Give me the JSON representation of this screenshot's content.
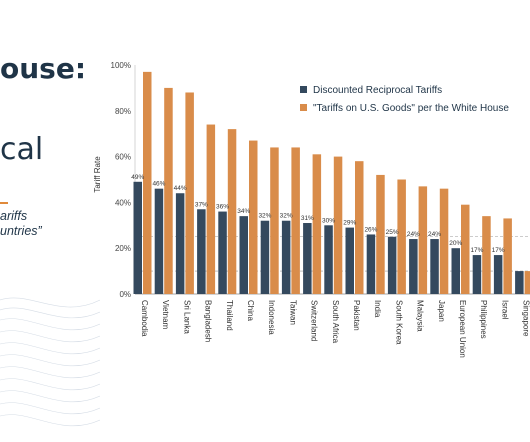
{
  "slide": {
    "title_fragment": "ouse:",
    "subtitle_fragment": "cal",
    "quote_line_1": "ariffs",
    "quote_line_2": "untries”",
    "accent_color": "#e08a3a",
    "text_color": "#1f3447"
  },
  "chart_data": {
    "type": "bar",
    "ylabel": "Tariff Rate",
    "ylim": [
      0,
      100
    ],
    "yticks": [
      "0%",
      "20%",
      "40%",
      "60%",
      "80%",
      "100%"
    ],
    "grid": false,
    "legend_position": "top-right",
    "reference_lines": [
      10,
      25
    ],
    "categories": [
      "Cambodia",
      "Vietnam",
      "Sri Lanka",
      "Bangladesh",
      "Thailand",
      "China",
      "Indonesia",
      "Taiwan",
      "Switzerland",
      "South Africa",
      "Pakistan",
      "India",
      "South Korea",
      "Malaysia",
      "Japan",
      "European Union",
      "Philippines",
      "Israel",
      "Singapore"
    ],
    "series": [
      {
        "name": "Discounted Reciprocal Tariffs",
        "color": "#34495e",
        "values": [
          49,
          46,
          44,
          37,
          36,
          34,
          32,
          32,
          31,
          30,
          29,
          26,
          25,
          24,
          24,
          20,
          17,
          17,
          10
        ],
        "labels": [
          "49%",
          "46%",
          "44%",
          "37%",
          "36%",
          "34%",
          "32%",
          "32%",
          "31%",
          "30%",
          "29%",
          "26%",
          "25%",
          "24%",
          "24%",
          "20%",
          "17%",
          "17%",
          ""
        ]
      },
      {
        "name": "\"Tariffs on U.S. Goods\" per the White House",
        "color": "#d98c4a",
        "values": [
          97,
          90,
          88,
          74,
          72,
          67,
          64,
          64,
          61,
          60,
          58,
          52,
          50,
          47,
          46,
          39,
          34,
          33,
          10
        ]
      }
    ]
  }
}
